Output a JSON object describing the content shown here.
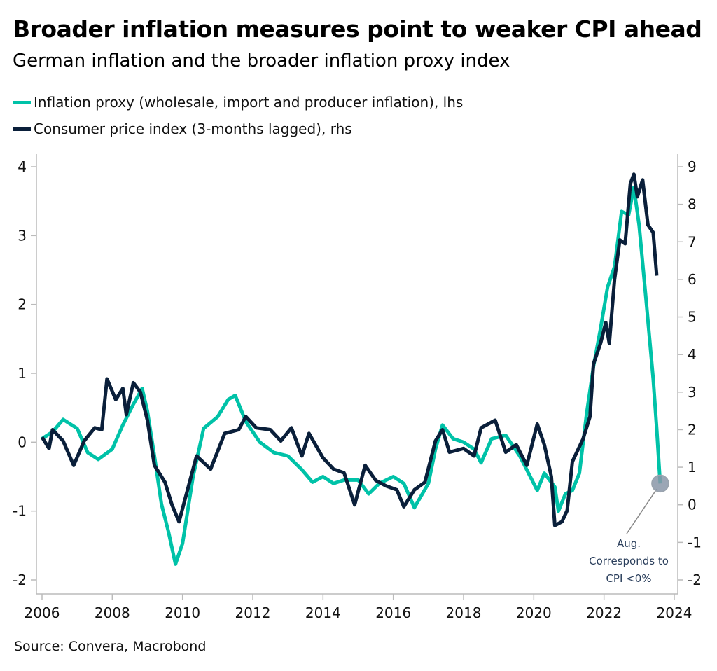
{
  "title": "Broader inflation measures point to weaker CPI ahead",
  "subtitle": "German inflation and the broader inflation proxy index",
  "source": "Source: Convera, Macrobond",
  "colors": {
    "proxy": "#00c2a8",
    "cpi": "#0a1f3a",
    "annotation_marker": "#8a96a8",
    "annotation_text": "#2b3f5c"
  },
  "chart_data": {
    "type": "line",
    "title": "Broader inflation measures point to weaker CPI ahead",
    "subtitle": "German inflation and the broader inflation proxy index",
    "x_ticks": [
      "2006",
      "2008",
      "2010",
      "2012",
      "2014",
      "2016",
      "2018",
      "2020",
      "2022",
      "2024"
    ],
    "xlim": [
      2006,
      2024
    ],
    "y_left": {
      "ticks": [
        "-2",
        "-1",
        "0",
        "1",
        "2",
        "3",
        "4"
      ],
      "ylim": [
        -2,
        4
      ]
    },
    "y_right": {
      "ticks": [
        "-2",
        "-1",
        "0",
        "1",
        "2",
        "3",
        "4",
        "5",
        "6",
        "7",
        "8",
        "9"
      ],
      "ylim": [
        -2,
        9
      ]
    },
    "grid": false,
    "legend_placement": "top-left",
    "series": [
      {
        "name": "Inflation proxy (wholesale, import and producer inflation), lhs",
        "axis": "left",
        "color": "#00c2a8",
        "x": [
          2006.0,
          2006.3,
          2006.6,
          2007.0,
          2007.3,
          2007.6,
          2008.0,
          2008.3,
          2008.6,
          2008.85,
          2009.0,
          2009.2,
          2009.4,
          2009.6,
          2009.8,
          2010.0,
          2010.3,
          2010.6,
          2011.0,
          2011.3,
          2011.5,
          2011.8,
          2012.2,
          2012.6,
          2013.0,
          2013.4,
          2013.7,
          2014.0,
          2014.3,
          2014.6,
          2015.0,
          2015.3,
          2015.6,
          2016.0,
          2016.3,
          2016.6,
          2017.0,
          2017.2,
          2017.4,
          2017.7,
          2018.0,
          2018.3,
          2018.5,
          2018.8,
          2019.2,
          2019.6,
          2019.9,
          2020.1,
          2020.3,
          2020.6,
          2020.7,
          2020.9,
          2021.1,
          2021.3,
          2021.5,
          2021.7,
          2021.9,
          2022.1,
          2022.3,
          2022.5,
          2022.7,
          2022.85,
          2023.0,
          2023.2,
          2023.4,
          2023.5,
          2023.6
        ],
        "y": [
          0.05,
          0.15,
          0.33,
          0.2,
          -0.15,
          -0.25,
          -0.1,
          0.25,
          0.55,
          0.78,
          0.45,
          -0.2,
          -0.9,
          -1.3,
          -1.77,
          -1.47,
          -0.5,
          0.2,
          0.37,
          0.62,
          0.68,
          0.3,
          0.0,
          -0.15,
          -0.2,
          -0.4,
          -0.58,
          -0.5,
          -0.6,
          -0.55,
          -0.55,
          -0.75,
          -0.6,
          -0.5,
          -0.6,
          -0.95,
          -0.6,
          -0.1,
          0.25,
          0.05,
          0.0,
          -0.1,
          -0.3,
          0.05,
          0.1,
          -0.2,
          -0.5,
          -0.7,
          -0.45,
          -0.65,
          -1.0,
          -0.75,
          -0.7,
          -0.45,
          0.4,
          1.1,
          1.65,
          2.25,
          2.55,
          3.35,
          3.3,
          3.7,
          3.15,
          2.05,
          0.92,
          0.2,
          -0.6
        ]
      },
      {
        "name": "Consumer price index (3-months lagged), rhs",
        "axis": "right",
        "color": "#0a1f3a",
        "x": [
          2006.0,
          2006.2,
          2006.3,
          2006.6,
          2006.9,
          2007.2,
          2007.5,
          2007.7,
          2007.85,
          2008.1,
          2008.3,
          2008.4,
          2008.6,
          2008.8,
          2009.0,
          2009.2,
          2009.5,
          2009.7,
          2009.9,
          2010.2,
          2010.4,
          2010.8,
          2011.2,
          2011.6,
          2011.8,
          2012.1,
          2012.5,
          2012.8,
          2013.1,
          2013.4,
          2013.6,
          2014.0,
          2014.3,
          2014.6,
          2014.9,
          2015.2,
          2015.5,
          2015.8,
          2016.1,
          2016.3,
          2016.6,
          2016.9,
          2017.2,
          2017.4,
          2017.6,
          2018.0,
          2018.3,
          2018.5,
          2018.9,
          2019.2,
          2019.5,
          2019.8,
          2020.1,
          2020.3,
          2020.5,
          2020.6,
          2020.8,
          2020.95,
          2021.1,
          2021.4,
          2021.6,
          2021.7,
          2021.9,
          2022.05,
          2022.15,
          2022.3,
          2022.45,
          2022.6,
          2022.75,
          2022.85,
          2022.95,
          2023.1,
          2023.25,
          2023.4,
          2023.5
        ],
        "y": [
          1.8,
          1.5,
          2.0,
          1.7,
          1.05,
          1.7,
          2.05,
          2.0,
          3.35,
          2.8,
          3.1,
          2.4,
          3.25,
          3.0,
          2.25,
          1.05,
          0.6,
          0.0,
          -0.45,
          0.6,
          1.3,
          0.95,
          1.9,
          2.0,
          2.35,
          2.05,
          2.0,
          1.7,
          2.05,
          1.3,
          1.9,
          1.25,
          0.95,
          0.85,
          0.0,
          1.05,
          0.65,
          0.5,
          0.4,
          -0.05,
          0.4,
          0.6,
          1.7,
          2.0,
          1.4,
          1.5,
          1.3,
          2.05,
          2.25,
          1.4,
          1.6,
          1.05,
          2.15,
          1.6,
          0.75,
          -0.55,
          -0.45,
          -0.15,
          1.15,
          1.75,
          2.35,
          3.75,
          4.3,
          4.85,
          4.3,
          6.0,
          7.05,
          6.95,
          8.55,
          8.8,
          8.2,
          8.65,
          7.45,
          7.25,
          6.1
        ]
      }
    ],
    "annotation": {
      "lines": [
        "Aug.",
        "Corresponds to",
        "CPI <0%"
      ],
      "x": 2023.6,
      "y_left": -0.6
    }
  }
}
